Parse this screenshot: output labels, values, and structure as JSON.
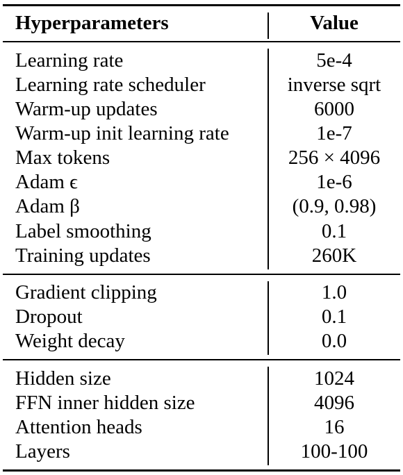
{
  "table": {
    "header": {
      "param": "Hyperparameters",
      "value": "Value"
    },
    "groups": [
      [
        {
          "param": "Learning rate",
          "value": "5e-4"
        },
        {
          "param": "Learning rate scheduler",
          "value": "inverse sqrt"
        },
        {
          "param": "Warm-up updates",
          "value": "6000"
        },
        {
          "param": "Warm-up init learning rate",
          "value": "1e-7"
        },
        {
          "param": "Max tokens",
          "value": "256 × 4096"
        },
        {
          "param": "Adam ϵ",
          "value": "1e-6"
        },
        {
          "param": "Adam β",
          "value": "(0.9, 0.98)"
        },
        {
          "param": "Label smoothing",
          "value": "0.1"
        },
        {
          "param": "Training updates",
          "value": "260K"
        }
      ],
      [
        {
          "param": "Gradient clipping",
          "value": "1.0"
        },
        {
          "param": "Dropout",
          "value": "0.1"
        },
        {
          "param": "Weight decay",
          "value": "0.0"
        }
      ],
      [
        {
          "param": "Hidden size",
          "value": "1024"
        },
        {
          "param": "FFN inner hidden size",
          "value": "4096"
        },
        {
          "param": "Attention heads",
          "value": "16"
        },
        {
          "param": "Layers",
          "value": "100-100"
        }
      ]
    ]
  }
}
